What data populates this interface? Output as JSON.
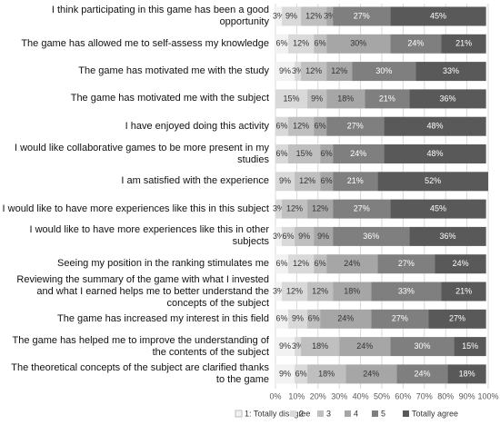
{
  "chart_data": {
    "type": "stacked-barh",
    "categories": [
      "I think participating in this game has been a good opportunity",
      "The game has allowed me to self-assess my knowledge",
      "The game has motivated me with the study",
      "The game has motivated me with the subject",
      "I have enjoyed doing this activity",
      "I would like collaborative games to be more present in my studies",
      "I am satisfied with the experience",
      "I would like to have more experiences like this in this subject",
      "I would like to have more experiences like this in other subjects",
      "Seeing my position in the ranking stimulates me",
      "Reviewing the summary of the game with what I invested and what I earned helps me to better understand the concepts of the subject",
      "The game has increased my interest in this field",
      "The game has helped me to improve the understanding of the contents of the subject",
      "The theoretical concepts of the subject are clarified thanks to the game"
    ],
    "series": [
      {
        "name": "1: Totally disagree",
        "color": "#f2f2f2",
        "values": [
          3,
          6,
          9,
          0,
          0,
          0,
          0,
          0,
          3,
          6,
          3,
          6,
          9,
          9
        ],
        "value_labels": [
          "3%",
          "6%",
          "9%",
          null,
          null,
          null,
          null,
          null,
          "3%",
          "6%",
          "3%",
          "6%",
          "9%",
          "9%"
        ]
      },
      {
        "name": "2",
        "color": "#d9d9d9",
        "values": [
          9,
          12,
          3,
          15,
          6,
          6,
          9,
          3,
          6,
          12,
          12,
          9,
          3,
          6
        ],
        "value_labels": [
          "9%",
          "12%",
          "3%",
          "15%",
          "6%",
          "6%",
          "9%",
          "3%",
          "6%",
          "12%",
          "12%",
          "9%",
          "3%",
          "6%"
        ]
      },
      {
        "name": "3",
        "color": "#bfbfbf",
        "values": [
          12,
          6,
          12,
          9,
          12,
          15,
          12,
          12,
          9,
          6,
          12,
          6,
          18,
          18
        ],
        "value_labels": [
          "12%",
          "6%",
          "12%",
          "9%",
          "12%",
          "15%",
          "12%",
          "12%",
          "9%",
          "6%",
          "12%",
          "6%",
          "18%",
          "18%"
        ]
      },
      {
        "name": "4",
        "color": "#a6a6a6",
        "values": [
          3,
          30,
          12,
          18,
          6,
          6,
          6,
          12,
          9,
          24,
          18,
          24,
          24,
          24
        ],
        "value_labels": [
          "3%",
          "30%",
          "12%",
          "18%",
          "6%",
          "6%",
          "6%",
          "12%",
          "9%",
          "24%",
          "18%",
          "24%",
          "24%",
          "24%"
        ]
      },
      {
        "name": "5",
        "color": "#7f7f7f",
        "values": [
          27,
          24,
          30,
          21,
          27,
          24,
          21,
          27,
          36,
          27,
          33,
          27,
          30,
          24
        ],
        "value_labels": [
          "27%",
          "24%",
          "30%",
          "21%",
          "27%",
          "24%",
          "21%",
          "27%",
          "36%",
          "27%",
          "33%",
          "27%",
          "30%",
          "24%"
        ]
      },
      {
        "name": "Totally agree",
        "color": "#595959",
        "values": [
          45,
          21,
          33,
          36,
          48,
          48,
          52,
          45,
          36,
          24,
          21,
          27,
          15,
          18
        ],
        "value_labels": [
          "45%",
          "21%",
          "33%",
          "36%",
          "48%",
          "48%",
          "52%",
          "45%",
          "36%",
          "24%",
          "21%",
          "27%",
          "15%",
          "18%"
        ]
      }
    ],
    "xlim": [
      0,
      100
    ],
    "xticks": [
      {
        "value": 0,
        "label": "0%"
      },
      {
        "value": 10,
        "label": "10%"
      },
      {
        "value": 20,
        "label": "20%"
      },
      {
        "value": 30,
        "label": "30%"
      },
      {
        "value": 40,
        "label": "40%"
      },
      {
        "value": 50,
        "label": "50%"
      },
      {
        "value": 60,
        "label": "60%"
      },
      {
        "value": 70,
        "label": "70%"
      },
      {
        "value": 80,
        "label": "80%"
      },
      {
        "value": 90,
        "label": "90%"
      },
      {
        "value": 100,
        "label": "100%"
      }
    ],
    "grid": true,
    "legend": "bottom"
  }
}
